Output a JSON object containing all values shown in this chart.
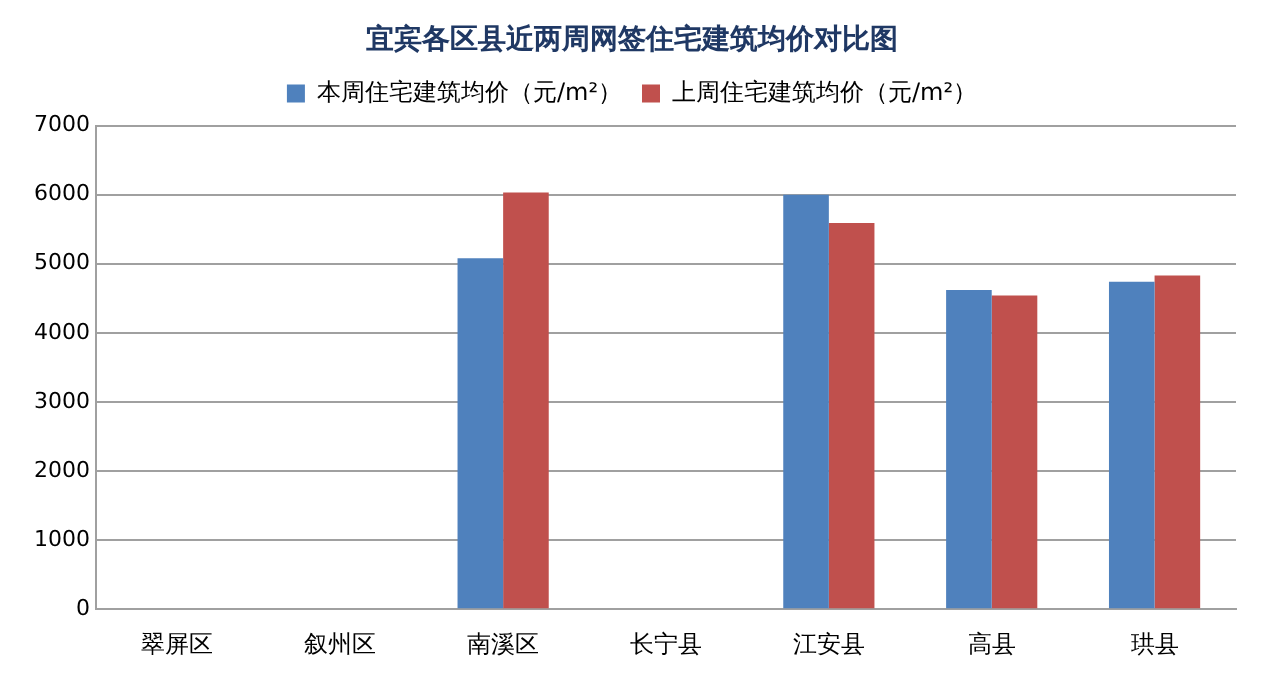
{
  "chart_data": {
    "type": "bar",
    "title": "宜宾各区县近两周网签住宅建筑均价对比图",
    "categories": [
      "翠屏区",
      "叙州区",
      "南溪区",
      "长宁县",
      "江安县",
      "高县",
      "珙县"
    ],
    "series": [
      {
        "name": "本周住宅建筑均价（元/m²）",
        "color": "#4f81bd",
        "values": [
          null,
          null,
          5080,
          null,
          6000,
          4620,
          4740
        ]
      },
      {
        "name": "上周住宅建筑均价（元/m²）",
        "color": "#c0504d",
        "values": [
          null,
          null,
          6030,
          null,
          5590,
          4540,
          4830
        ]
      }
    ],
    "ylim": [
      0,
      7000
    ],
    "yticks": [
      0,
      1000,
      2000,
      3000,
      4000,
      5000,
      6000,
      7000
    ],
    "grid": "y",
    "legend": "top"
  }
}
